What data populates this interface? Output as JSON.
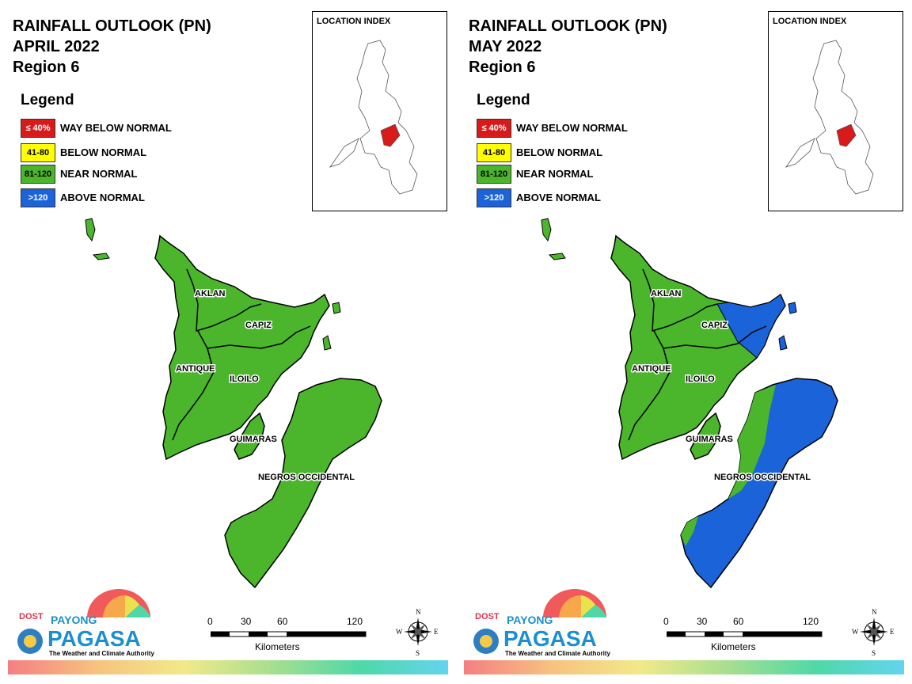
{
  "panels": [
    {
      "title": [
        "RAINFALL OUTLOOK (PN)",
        "APRIL 2022",
        "Region 6"
      ],
      "legend": {
        "title": "Legend",
        "items": [
          {
            "code": "≤ 40%",
            "label": "WAY BELOW NORMAL",
            "color": "#d81a1a"
          },
          {
            "code": "41-80",
            "label": "BELOW NORMAL",
            "color": "#ffff00"
          },
          {
            "code": "81-120",
            "label": "NEAR NORMAL",
            "color": "#4bb52c"
          },
          {
            "code": ">120",
            "label": "ABOVE NORMAL",
            "color": "#1a63d8"
          }
        ]
      },
      "location_index": "LOCATION INDEX",
      "provinces": [
        {
          "name": "AKLAN",
          "category": "NEAR NORMAL"
        },
        {
          "name": "CAPIZ",
          "category": "NEAR NORMAL"
        },
        {
          "name": "ANTIQUE",
          "category": "NEAR NORMAL"
        },
        {
          "name": "ILOILO",
          "category": "NEAR NORMAL"
        },
        {
          "name": "GUIMARAS",
          "category": "NEAR NORMAL"
        },
        {
          "name": "NEGROS OCCIDENTAL",
          "category": "NEAR NORMAL"
        }
      ],
      "scale": {
        "ticks": [
          "0",
          "30",
          "60",
          "120"
        ],
        "unit": "Kilometers"
      },
      "logo": {
        "dost": "DOST",
        "payong": "PAYONG",
        "pagasa": "PAGASA",
        "tagline": "The Weather and Climate Authority"
      },
      "compass": {
        "n": "N",
        "s": "S",
        "e": "E",
        "w": "W"
      }
    },
    {
      "title": [
        "RAINFALL OUTLOOK (PN)",
        "MAY 2022",
        "Region 6"
      ],
      "legend": {
        "title": "Legend",
        "items": [
          {
            "code": "≤ 40%",
            "label": "WAY BELOW NORMAL",
            "color": "#d81a1a"
          },
          {
            "code": "41-80",
            "label": "BELOW NORMAL",
            "color": "#ffff00"
          },
          {
            "code": "81-120",
            "label": "NEAR NORMAL",
            "color": "#4bb52c"
          },
          {
            "code": ">120",
            "label": "ABOVE NORMAL",
            "color": "#1a63d8"
          }
        ]
      },
      "location_index": "LOCATION INDEX",
      "provinces": [
        {
          "name": "AKLAN",
          "category": "NEAR NORMAL"
        },
        {
          "name": "CAPIZ",
          "category": "NEAR NORMAL / ABOVE NORMAL (east)"
        },
        {
          "name": "ANTIQUE",
          "category": "NEAR NORMAL"
        },
        {
          "name": "ILOILO",
          "category": "NEAR NORMAL"
        },
        {
          "name": "GUIMARAS",
          "category": "NEAR NORMAL"
        },
        {
          "name": "NEGROS OCCIDENTAL",
          "category": "ABOVE NORMAL (mostly)"
        }
      ],
      "scale": {
        "ticks": [
          "0",
          "30",
          "60",
          "120"
        ],
        "unit": "Kilometers"
      },
      "logo": {
        "dost": "DOST",
        "payong": "PAYONG",
        "pagasa": "PAGASA",
        "tagline": "The Weather and Climate Authority"
      },
      "compass": {
        "n": "N",
        "s": "S",
        "e": "E",
        "w": "W"
      }
    }
  ]
}
